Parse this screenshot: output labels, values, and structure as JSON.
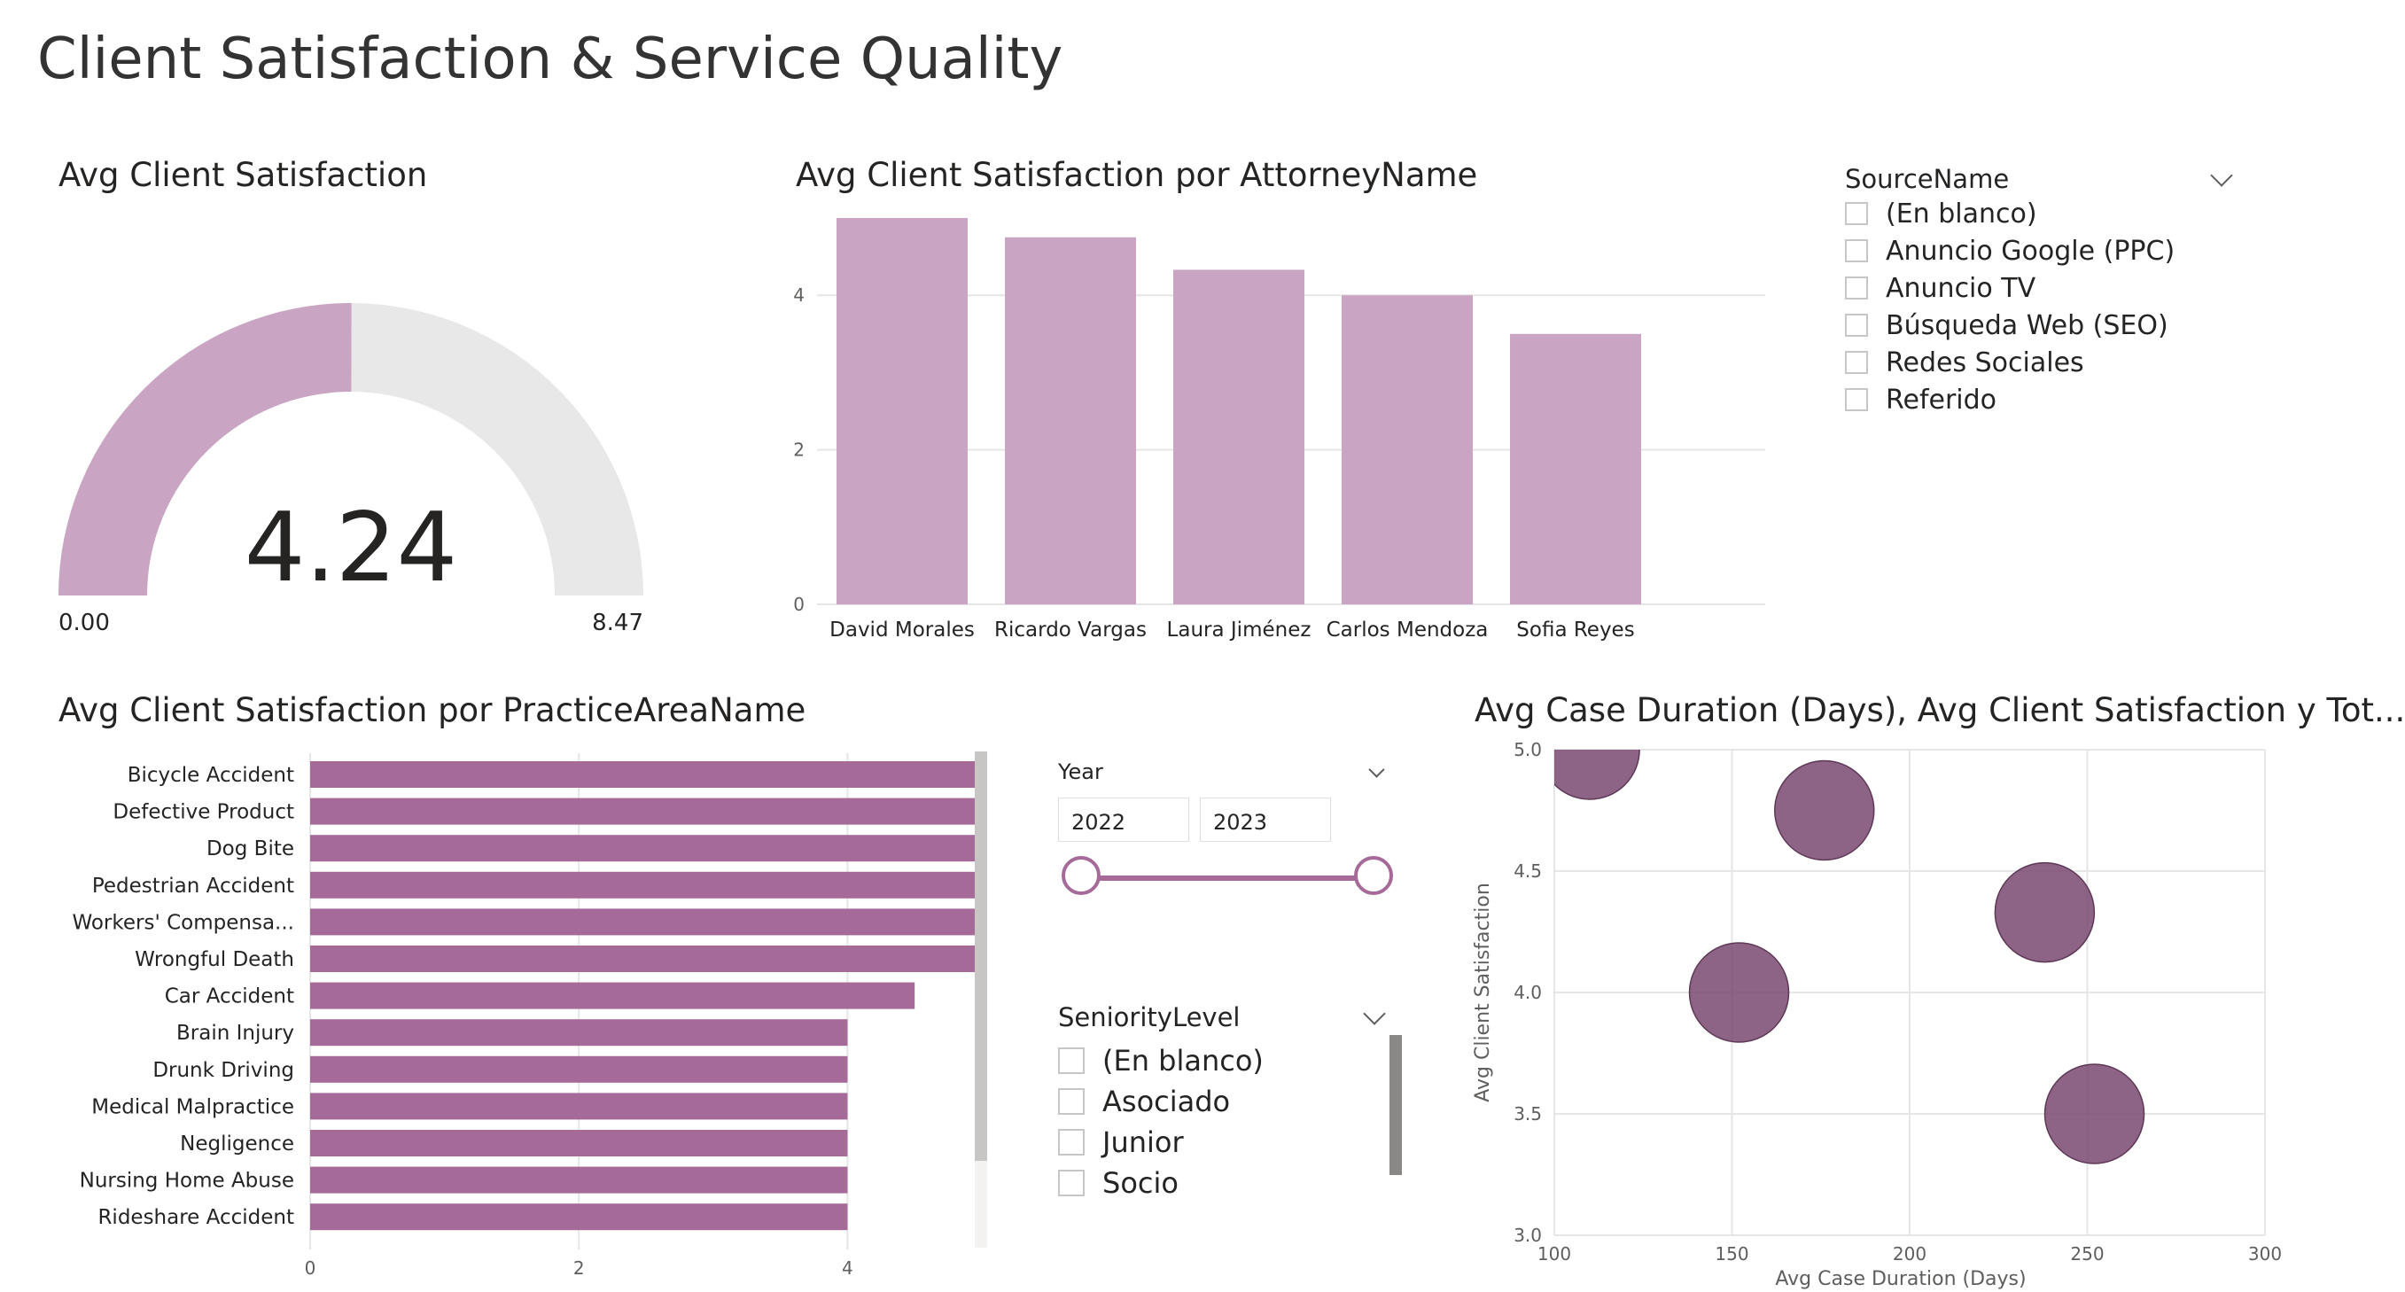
{
  "page": {
    "title": "Client Satisfaction & Service Quality"
  },
  "colors": {
    "light_mauve": "#c9a5c3",
    "mauve": "#a56a98",
    "plum": "#7d4e74",
    "gauge_bg": "#e8e8e8",
    "grid": "#e6e6e6",
    "slider": "#a56a98"
  },
  "gauge": {
    "title": "Avg Client Satisfaction",
    "value": 4.24,
    "value_label": "4.24",
    "min": 0,
    "max": 8.47,
    "min_label": "0.00",
    "max_label": "8.47"
  },
  "source_slicer": {
    "header": "SourceName",
    "items": [
      "(En blanco)",
      "Anuncio Google (PPC)",
      "Anuncio TV",
      "Búsqueda Web (SEO)",
      "Redes Sociales",
      "Referido"
    ]
  },
  "year_slicer": {
    "header": "Year",
    "from": "2022",
    "to": "2023"
  },
  "seniority_slicer": {
    "header": "SeniorityLevel",
    "items": [
      "(En blanco)",
      "Asociado",
      "Junior",
      "Socio"
    ]
  },
  "chart_data": [
    {
      "type": "bar",
      "title": "Avg Client Satisfaction por AttorneyName",
      "categories": [
        "David Morales",
        "Ricardo Vargas",
        "Laura Jiménez",
        "Carlos Mendoza",
        "Sofia Reyes"
      ],
      "values": [
        5.0,
        4.75,
        4.33,
        4.0,
        3.5
      ],
      "ylim": [
        0,
        5
      ],
      "yticks": [
        0,
        2,
        4
      ],
      "grid": true
    },
    {
      "type": "bar",
      "orientation": "horizontal",
      "title": "Avg Client Satisfaction por PracticeAreaName",
      "categories": [
        "Bicycle Accident",
        "Defective Product",
        "Dog Bite",
        "Pedestrian Accident",
        "Workers' Compensa...",
        "Wrongful Death",
        "Car Accident",
        "Brain Injury",
        "Drunk Driving",
        "Medical Malpractice",
        "Negligence",
        "Nursing Home Abuse",
        "Rideshare Accident"
      ],
      "values": [
        5,
        5,
        5,
        5,
        5,
        5,
        4.5,
        4,
        4,
        4,
        4,
        4,
        4
      ],
      "xlim": [
        0,
        5
      ],
      "xticks": [
        0,
        2,
        4
      ],
      "grid": true
    },
    {
      "type": "scatter",
      "title": "Avg Case Duration (Days), Avg Client Satisfaction y Tot...",
      "xlabel": "Avg Case Duration (Days)",
      "ylabel": "Avg Client Satisfaction",
      "xlim": [
        100,
        300
      ],
      "ylim": [
        3.0,
        5.0
      ],
      "xticks": [
        100,
        150,
        200,
        250,
        300
      ],
      "yticks": [
        3.0,
        3.5,
        4.0,
        4.5,
        5.0
      ],
      "points": [
        {
          "x": 110,
          "y": 5.0,
          "size": 1
        },
        {
          "x": 176,
          "y": 4.75,
          "size": 1
        },
        {
          "x": 238,
          "y": 4.33,
          "size": 1
        },
        {
          "x": 152,
          "y": 4.0,
          "size": 1
        },
        {
          "x": 252,
          "y": 3.5,
          "size": 1
        }
      ],
      "grid": true
    }
  ]
}
